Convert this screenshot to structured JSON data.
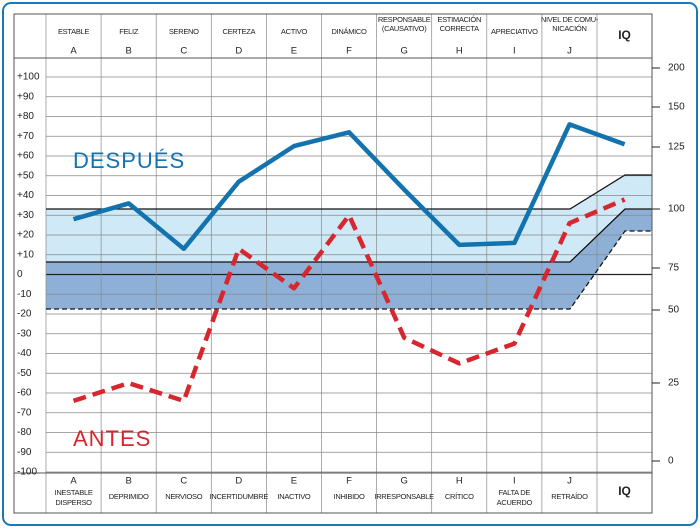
{
  "chart_data": {
    "type": "line",
    "categories": [
      "A",
      "B",
      "C",
      "D",
      "E",
      "F",
      "G",
      "H",
      "I",
      "J",
      "IQ"
    ],
    "top_labels": [
      [
        "ESTABLE"
      ],
      [
        "FELIZ"
      ],
      [
        "SERENO"
      ],
      [
        "CERTEZA"
      ],
      [
        "ACTIVO"
      ],
      [
        "DINÁMICO"
      ],
      [
        "RESPONSABLE",
        "(CAUSATIVO)"
      ],
      [
        "ESTIMACIÓN",
        "CORRECTA"
      ],
      [
        "APRECIATIVO"
      ],
      [
        "NIVEL DE COMU-",
        "NICACIÓN"
      ],
      []
    ],
    "bottom_labels": [
      [
        "INESTABLE",
        "DISPERSO"
      ],
      [
        "DEPRIMIDO"
      ],
      [
        "NERVIOSO"
      ],
      [
        "INCERTIDUMBRE"
      ],
      [
        "INACTIVO"
      ],
      [
        "INHIBIDO"
      ],
      [
        "IRRESPONSABLE"
      ],
      [
        "CRÍTICO"
      ],
      [
        "FALTA DE",
        "ACUERDO"
      ],
      [
        "RETRAÍDO"
      ],
      []
    ],
    "series": [
      {
        "name": "DESPUÉS",
        "color": "#1273ae",
        "dashed": false,
        "values": [
          28,
          36,
          13,
          47,
          65,
          72,
          43,
          15,
          16,
          76,
          66
        ]
      },
      {
        "name": "ANTES",
        "color": "#d8262e",
        "dashed": true,
        "values": [
          -64,
          -55,
          -64,
          13,
          -7,
          30,
          -32,
          -45,
          -35,
          26,
          38
        ]
      }
    ],
    "ylim": [
      -100,
      100
    ],
    "yticks": [
      {
        "value": 100,
        "label": "+100"
      },
      {
        "value": 90,
        "label": "+90"
      },
      {
        "value": 80,
        "label": "+80"
      },
      {
        "value": 70,
        "label": "+70"
      },
      {
        "value": 60,
        "label": "+60"
      },
      {
        "value": 50,
        "label": "+50"
      },
      {
        "value": 40,
        "label": "+40"
      },
      {
        "value": 30,
        "label": "+30"
      },
      {
        "value": 20,
        "label": "+20"
      },
      {
        "value": 10,
        "label": "+10"
      },
      0,
      -10,
      -20,
      -30,
      -40,
      -50,
      -60,
      -70,
      -80,
      -90,
      -100
    ],
    "y2ticks": [
      0,
      25,
      50,
      75,
      100,
      125,
      150,
      200
    ],
    "grid": true
  }
}
